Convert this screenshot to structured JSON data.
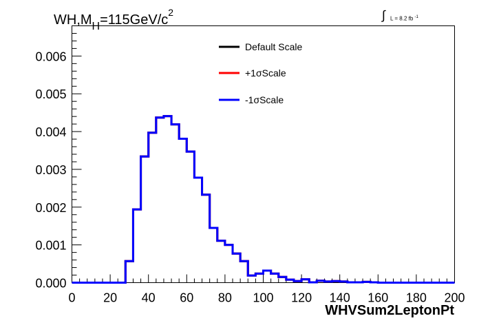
{
  "chart_data": {
    "type": "line",
    "title_parts": {
      "pre": "WH,M",
      "sub": "H",
      "mid": "=115GeV/c",
      "sup": "2"
    },
    "lumi": {
      "integral": "∫",
      "text": "L = 8.2 fb",
      "sup": "-1"
    },
    "xlabel": "WHVSum2LeptonPt",
    "ylabel": "",
    "xlim": [
      0,
      200
    ],
    "ylim": [
      0,
      0.0068
    ],
    "xticks": [
      "0",
      "20",
      "40",
      "60",
      "80",
      "100",
      "120",
      "140",
      "160",
      "180",
      "200"
    ],
    "yticks": [
      "0.000",
      "0.001",
      "0.002",
      "0.003",
      "0.004",
      "0.005",
      "0.006"
    ],
    "bin_width": 4,
    "x": [
      0,
      4,
      8,
      12,
      16,
      20,
      24,
      28,
      32,
      36,
      40,
      44,
      48,
      52,
      56,
      60,
      64,
      68,
      72,
      76,
      80,
      84,
      88,
      92,
      96,
      100,
      104,
      108,
      112,
      116,
      120,
      124,
      128,
      132,
      136,
      140,
      144,
      148,
      152,
      156,
      160,
      164,
      168,
      172,
      176,
      180,
      184,
      188,
      192,
      196
    ],
    "series": [
      {
        "name": "Default Scale",
        "color": "#000000",
        "values": [
          0,
          0,
          0,
          0,
          0,
          0,
          0,
          0.00057,
          0.00194,
          0.00334,
          0.00397,
          0.00437,
          0.00441,
          0.00419,
          0.00381,
          0.00347,
          0.00278,
          0.00233,
          0.00145,
          0.00111,
          0.001,
          0.00077,
          0.00057,
          0.00019,
          0.00024,
          0.00032,
          0.00024,
          0.00015,
          8e-05,
          4e-05,
          9e-05,
          1e-05,
          5e-05,
          3e-05,
          4e-05,
          3e-05,
          1e-05,
          1e-05,
          2e-05,
          1e-05,
          0,
          0,
          0,
          0,
          0,
          0,
          0,
          0,
          0,
          0
        ]
      },
      {
        "name": "+1σScale",
        "color": "#ff0000",
        "values": [
          0,
          0,
          0,
          0,
          0,
          0,
          0,
          0.00057,
          0.00194,
          0.00334,
          0.00397,
          0.00437,
          0.00441,
          0.00419,
          0.00381,
          0.00347,
          0.00278,
          0.00233,
          0.00145,
          0.00111,
          0.001,
          0.00077,
          0.00057,
          0.00019,
          0.00024,
          0.00032,
          0.00024,
          0.00015,
          8e-05,
          4e-05,
          9e-05,
          1e-05,
          5e-05,
          3e-05,
          4e-05,
          3e-05,
          1e-05,
          1e-05,
          2e-05,
          1e-05,
          0,
          0,
          0,
          0,
          0,
          0,
          0,
          0,
          0,
          0
        ]
      },
      {
        "name": "-1σScale",
        "color": "#0000ff",
        "values": [
          0,
          0,
          0,
          0,
          0,
          0,
          0,
          0.00057,
          0.00194,
          0.00334,
          0.00397,
          0.00437,
          0.00441,
          0.00419,
          0.00381,
          0.00347,
          0.00278,
          0.00233,
          0.00145,
          0.00111,
          0.001,
          0.00077,
          0.00057,
          0.00019,
          0.00024,
          0.00032,
          0.00024,
          0.00015,
          8e-05,
          4e-05,
          9e-05,
          1e-05,
          5e-05,
          3e-05,
          4e-05,
          3e-05,
          1e-05,
          1e-05,
          2e-05,
          1e-05,
          0,
          0,
          0,
          0,
          0,
          0,
          0,
          0,
          0,
          0
        ]
      }
    ],
    "legend_placement": "top-center",
    "grid": false
  }
}
